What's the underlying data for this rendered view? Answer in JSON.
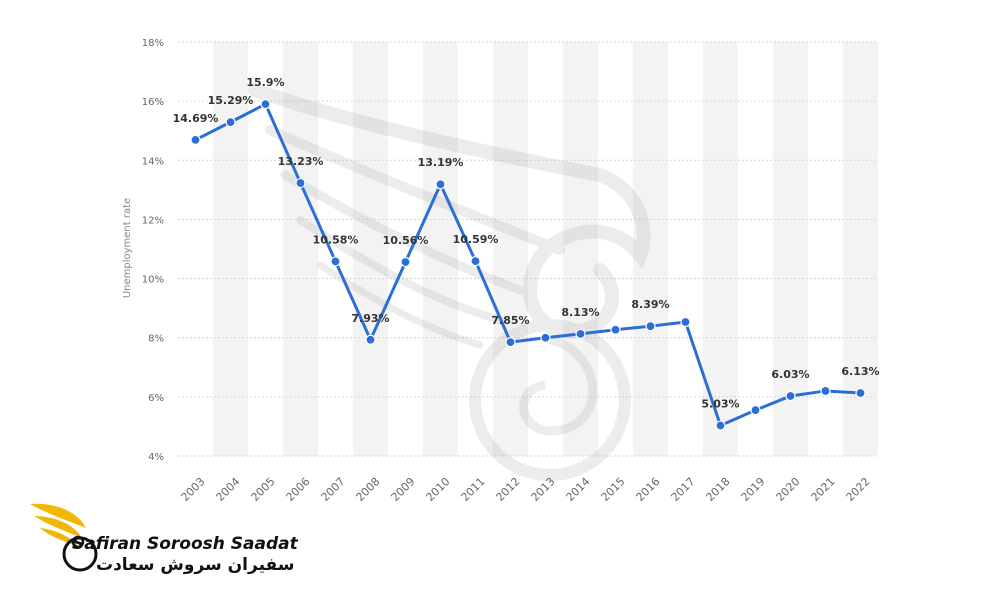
{
  "chart_data": {
    "type": "line",
    "xlabel": "",
    "ylabel": "Unemployment rate",
    "ylim": [
      4,
      18
    ],
    "yticks": [
      "4%",
      "6%",
      "8%",
      "10%",
      "12%",
      "14%",
      "16%",
      "18%"
    ],
    "grid": true,
    "categories": [
      "2003",
      "2004",
      "2005",
      "2006",
      "2007",
      "2008",
      "2009",
      "2010",
      "2011",
      "2012",
      "2013",
      "2014",
      "2015",
      "2016",
      "2017",
      "2018",
      "2019",
      "2020",
      "2021",
      "2022"
    ],
    "series": [
      {
        "values": [
          14.69,
          15.29,
          15.9,
          13.23,
          10.58,
          7.93,
          10.56,
          13.19,
          10.59,
          7.85,
          8.0,
          8.13,
          8.27,
          8.39,
          8.53,
          5.03,
          5.55,
          6.03,
          6.2,
          6.13
        ],
        "labels": [
          "14.69%",
          "15.29%",
          "15.9%",
          "13.23%",
          "10.58%",
          "7.93%",
          "10.56%",
          "13.19%",
          "10.59%",
          "7.85%",
          "",
          "8.13%",
          "",
          "8.39%",
          "",
          "5.03%",
          "",
          "6.03%",
          "",
          "6.13%"
        ],
        "color": "#2b6fd6"
      }
    ]
  },
  "branding": {
    "name_en": "Safiran Soroosh Saadat",
    "name_fa": "سفیران سروش سعادت",
    "accent_color": "#f2b705"
  }
}
